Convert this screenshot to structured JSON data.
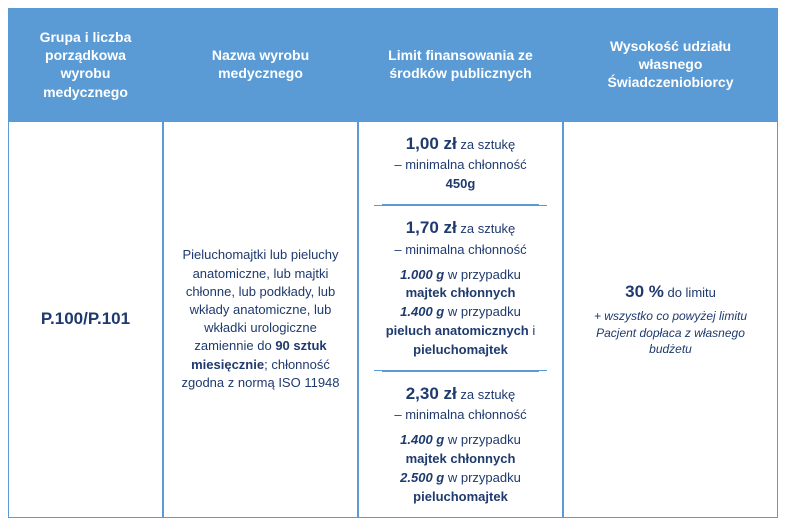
{
  "colors": {
    "header_bg": "#5b9bd5",
    "header_text": "#ffffff",
    "border": "#5b9bd5",
    "body_text": "#1f3a6e"
  },
  "headers": {
    "col1": "Grupa i liczba porządkowa wyrobu medycznego",
    "col2": "Nazwa wyrobu medycznego",
    "col3": "Limit finansowania ze środków publicznych",
    "col4": "Wysokość udziału własnego Świadczeniobiorcy"
  },
  "row": {
    "group": "P.100/P.101",
    "name_pre": "Pieluchomajtki lub pieluchy anatomiczne, lub majtki chłonne, lub podkłady, lub wkłady anatomiczne, lub wkładki urologiczne zamiennie do ",
    "name_bold": "90 sztuk miesięcznie",
    "name_post": "; chłonność zgodna z normą ISO 11948",
    "limits": [
      {
        "price": "1,00 zł",
        "per": " za sztukę",
        "min_label": "– minimalna chłonność",
        "lines": [
          {
            "bold": "450g"
          }
        ]
      },
      {
        "price": "1,70 zł",
        "per": " za sztukę",
        "min_label": "– minimalna chłonność",
        "lines": [
          {
            "amount": "1.000 g",
            "text": " w przypadku"
          },
          {
            "bold": "majtek chłonnych"
          },
          {
            "amount": "1.400 g",
            "text": " w przypadku"
          },
          {
            "bold_pre": "pieluch anatomicznych",
            "mid": " i"
          },
          {
            "bold": "pieluchomajtek"
          }
        ]
      },
      {
        "price": "2,30 zł",
        "per": " za sztukę",
        "min_label": "– minimalna chłonność",
        "lines": [
          {
            "amount": "1.400 g",
            "text": " w przypadku"
          },
          {
            "bold": "majtek chłonnych"
          },
          {
            "amount": "2.500 g",
            "text": " w przypadku"
          },
          {
            "bold": "pieluchomajtek"
          }
        ]
      }
    ],
    "share": {
      "pct": "30 %",
      "pct_post": " do limitu",
      "note": "+ wszystko co powyżej limitu Pacjent dopłaca z własnego budżetu"
    }
  }
}
